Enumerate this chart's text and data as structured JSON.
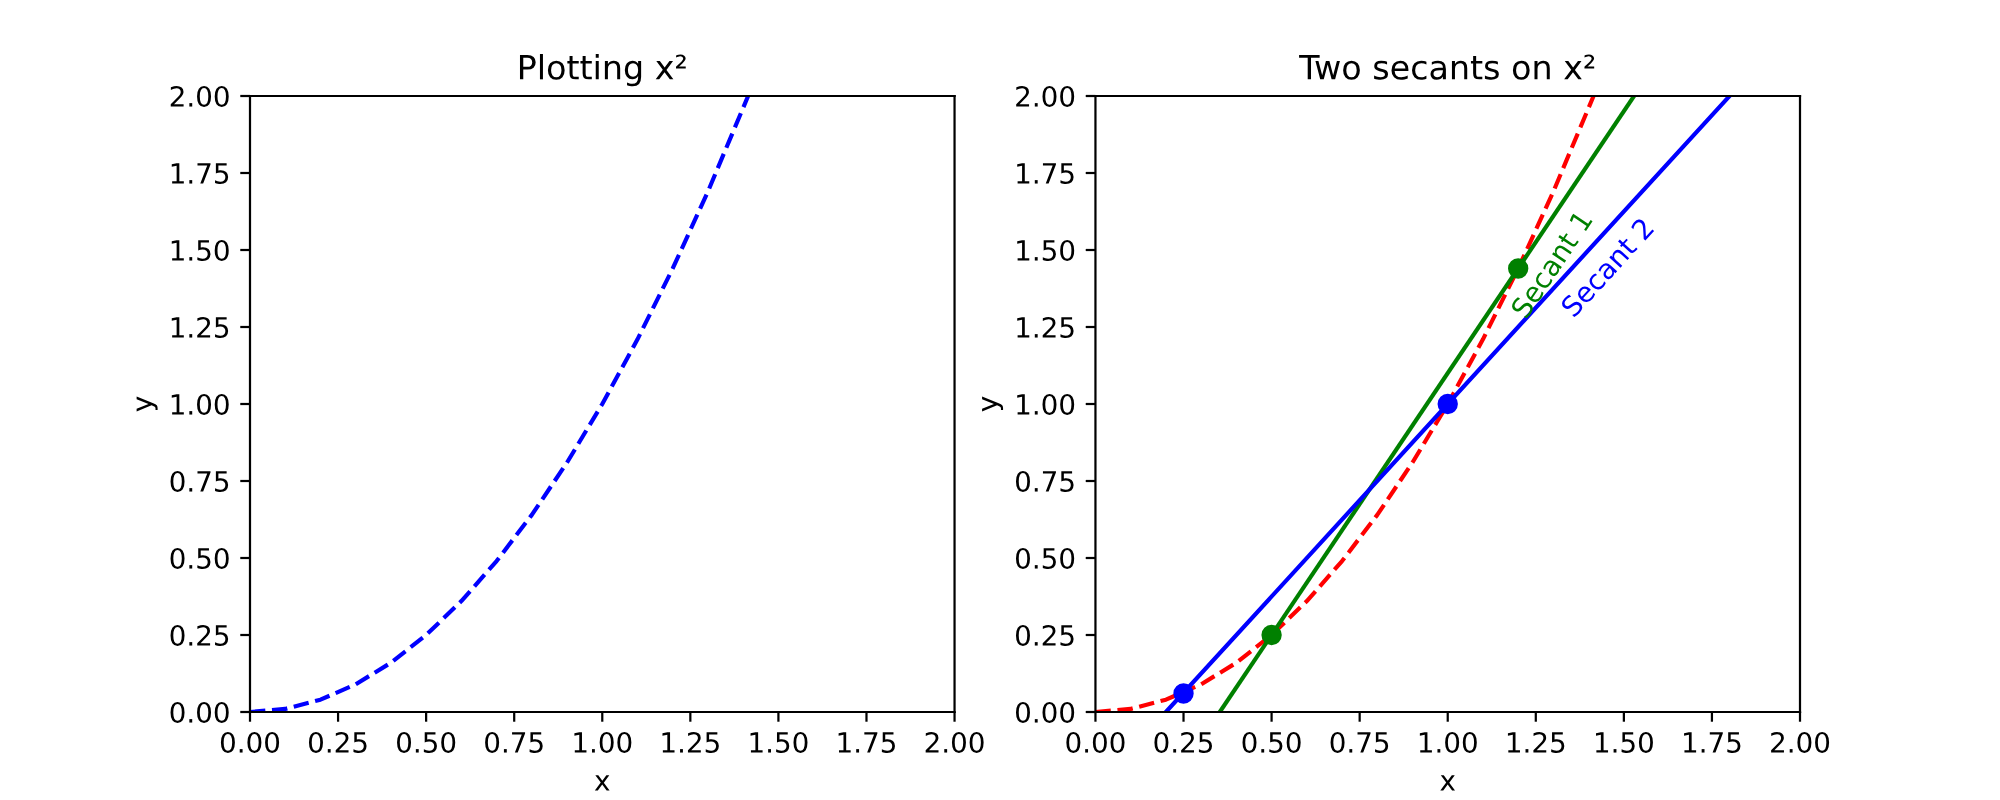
{
  "chart_data": [
    {
      "type": "line",
      "title": "Plotting x²",
      "xlabel": "x",
      "ylabel": "y",
      "xlim": [
        0,
        2
      ],
      "ylim": [
        0,
        2
      ],
      "xticks": [
        {
          "value": 0,
          "label": "0.00"
        },
        {
          "value": 0.25,
          "label": "0.25"
        },
        {
          "value": 0.5,
          "label": "0.50"
        },
        {
          "value": 0.75,
          "label": "0.75"
        },
        {
          "value": 1,
          "label": "1.00"
        },
        {
          "value": 1.25,
          "label": "1.25"
        },
        {
          "value": 1.5,
          "label": "1.50"
        },
        {
          "value": 1.75,
          "label": "1.75"
        },
        {
          "value": 2,
          "label": "2.00"
        }
      ],
      "yticks": [
        {
          "value": 0,
          "label": "0.00"
        },
        {
          "value": 0.25,
          "label": "0.25"
        },
        {
          "value": 0.5,
          "label": "0.50"
        },
        {
          "value": 0.75,
          "label": "0.75"
        },
        {
          "value": 1,
          "label": "1.00"
        },
        {
          "value": 1.25,
          "label": "1.25"
        },
        {
          "value": 1.5,
          "label": "1.50"
        },
        {
          "value": 1.75,
          "label": "1.75"
        },
        {
          "value": 2,
          "label": "2.00"
        }
      ],
      "series": [
        {
          "color": "#0000ff",
          "line_style": "dashed",
          "x": [
            0,
            0.1,
            0.2,
            0.3,
            0.4,
            0.5,
            0.6,
            0.7,
            0.8,
            0.9,
            1.0,
            1.1,
            1.2,
            1.3,
            1.414
          ],
          "values": [
            0,
            0.01,
            0.04,
            0.09,
            0.16,
            0.25,
            0.36,
            0.49,
            0.64,
            0.81,
            1.0,
            1.21,
            1.44,
            1.69,
            2.0
          ]
        }
      ]
    },
    {
      "type": "line",
      "title": "Two secants on x²",
      "xlabel": "x",
      "ylabel": "y",
      "xlim": [
        0,
        2
      ],
      "ylim": [
        0,
        2
      ],
      "xticks": [
        {
          "value": 0,
          "label": "0.00"
        },
        {
          "value": 0.25,
          "label": "0.25"
        },
        {
          "value": 0.5,
          "label": "0.50"
        },
        {
          "value": 0.75,
          "label": "0.75"
        },
        {
          "value": 1,
          "label": "1.00"
        },
        {
          "value": 1.25,
          "label": "1.25"
        },
        {
          "value": 1.5,
          "label": "1.50"
        },
        {
          "value": 1.75,
          "label": "1.75"
        },
        {
          "value": 2,
          "label": "2.00"
        }
      ],
      "yticks": [
        {
          "value": 0,
          "label": "0.00"
        },
        {
          "value": 0.25,
          "label": "0.25"
        },
        {
          "value": 0.5,
          "label": "0.50"
        },
        {
          "value": 0.75,
          "label": "0.75"
        },
        {
          "value": 1,
          "label": "1.00"
        },
        {
          "value": 1.25,
          "label": "1.25"
        },
        {
          "value": 1.5,
          "label": "1.50"
        },
        {
          "value": 1.75,
          "label": "1.75"
        },
        {
          "value": 2,
          "label": "2.00"
        }
      ],
      "series": [
        {
          "color": "#ff0000",
          "line_style": "dashed",
          "x": [
            0,
            0.1,
            0.2,
            0.3,
            0.4,
            0.5,
            0.6,
            0.7,
            0.8,
            0.9,
            1.0,
            1.1,
            1.2,
            1.3,
            1.414
          ],
          "values": [
            0,
            0.01,
            0.04,
            0.09,
            0.16,
            0.25,
            0.36,
            0.49,
            0.64,
            0.81,
            1.0,
            1.21,
            1.44,
            1.69,
            2.0
          ]
        },
        {
          "name": "Secant 1",
          "color": "#008000",
          "line_style": "solid",
          "x": [
            0.353,
            1.529
          ],
          "values": [
            0,
            2
          ]
        },
        {
          "name": "Secant 2",
          "color": "#0000ff",
          "line_style": "solid",
          "x": [
            0.2,
            1.8
          ],
          "values": [
            0,
            2
          ]
        },
        {
          "type": "scatter",
          "marker": "circle",
          "color": "#008000",
          "x": [
            0.5,
            1.2
          ],
          "values": [
            0.25,
            1.44
          ]
        },
        {
          "type": "scatter",
          "marker": "circle",
          "color": "#0000ff",
          "x": [
            0.25,
            1.0
          ],
          "values": [
            0.06,
            1.0
          ]
        }
      ]
    }
  ]
}
